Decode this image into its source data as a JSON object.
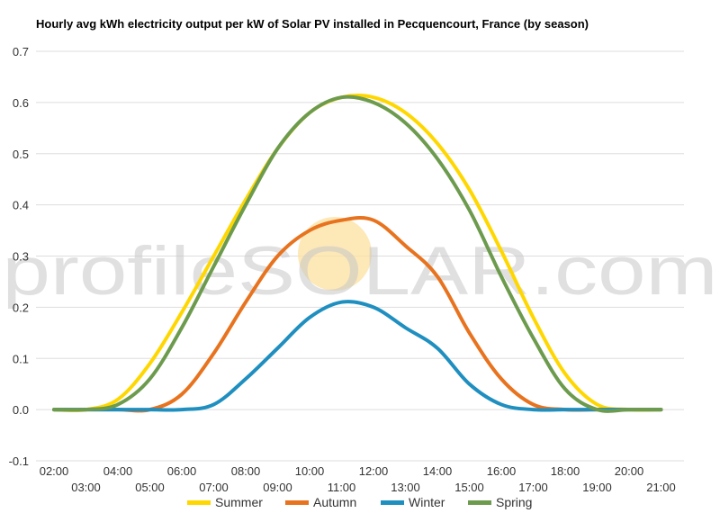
{
  "chart_data": {
    "type": "line",
    "title": "Hourly avg kWh electricity output per kW of Solar PV installed in Pecquencourt, France (by season)",
    "xlabel": "",
    "ylabel": "",
    "ylim": [
      -0.1,
      0.7
    ],
    "yticks": [
      "0.7",
      "0.6",
      "0.5",
      "0.4",
      "0.3",
      "0.2",
      "0.1",
      "0.0",
      "-0.1"
    ],
    "yticks_values": [
      0.7,
      0.6,
      0.5,
      0.4,
      0.3,
      0.2,
      0.1,
      0.0,
      -0.1
    ],
    "x": [
      "02:00",
      "03:00",
      "04:00",
      "05:00",
      "06:00",
      "07:00",
      "08:00",
      "09:00",
      "10:00",
      "11:00",
      "12:00",
      "13:00",
      "14:00",
      "15:00",
      "16:00",
      "17:00",
      "18:00",
      "19:00",
      "20:00",
      "21:00"
    ],
    "grid": true,
    "legend_position": "bottom",
    "watermark": "profileSOLAR.com",
    "series": [
      {
        "name": "Summer",
        "color": "#FFD700",
        "values": [
          0.0,
          0.0,
          0.02,
          0.09,
          0.19,
          0.3,
          0.41,
          0.51,
          0.58,
          0.61,
          0.61,
          0.58,
          0.52,
          0.43,
          0.31,
          0.18,
          0.07,
          0.01,
          0.0,
          0.0
        ]
      },
      {
        "name": "Autumn",
        "color": "#E8731F",
        "values": [
          0.0,
          0.0,
          0.0,
          0.0,
          0.03,
          0.11,
          0.21,
          0.3,
          0.35,
          0.37,
          0.37,
          0.32,
          0.26,
          0.15,
          0.06,
          0.01,
          0.0,
          0.0,
          0.0,
          0.0
        ]
      },
      {
        "name": "Winter",
        "color": "#1F8FC0",
        "values": [
          0.0,
          0.0,
          0.0,
          0.0,
          0.0,
          0.01,
          0.06,
          0.12,
          0.18,
          0.21,
          0.2,
          0.16,
          0.12,
          0.05,
          0.01,
          0.0,
          0.0,
          0.0,
          0.0,
          0.0
        ]
      },
      {
        "name": "Spring",
        "color": "#6D9B4E",
        "values": [
          0.0,
          0.0,
          0.01,
          0.06,
          0.16,
          0.28,
          0.4,
          0.51,
          0.58,
          0.61,
          0.6,
          0.56,
          0.49,
          0.39,
          0.26,
          0.14,
          0.04,
          0.0,
          0.0,
          0.0
        ]
      }
    ]
  }
}
